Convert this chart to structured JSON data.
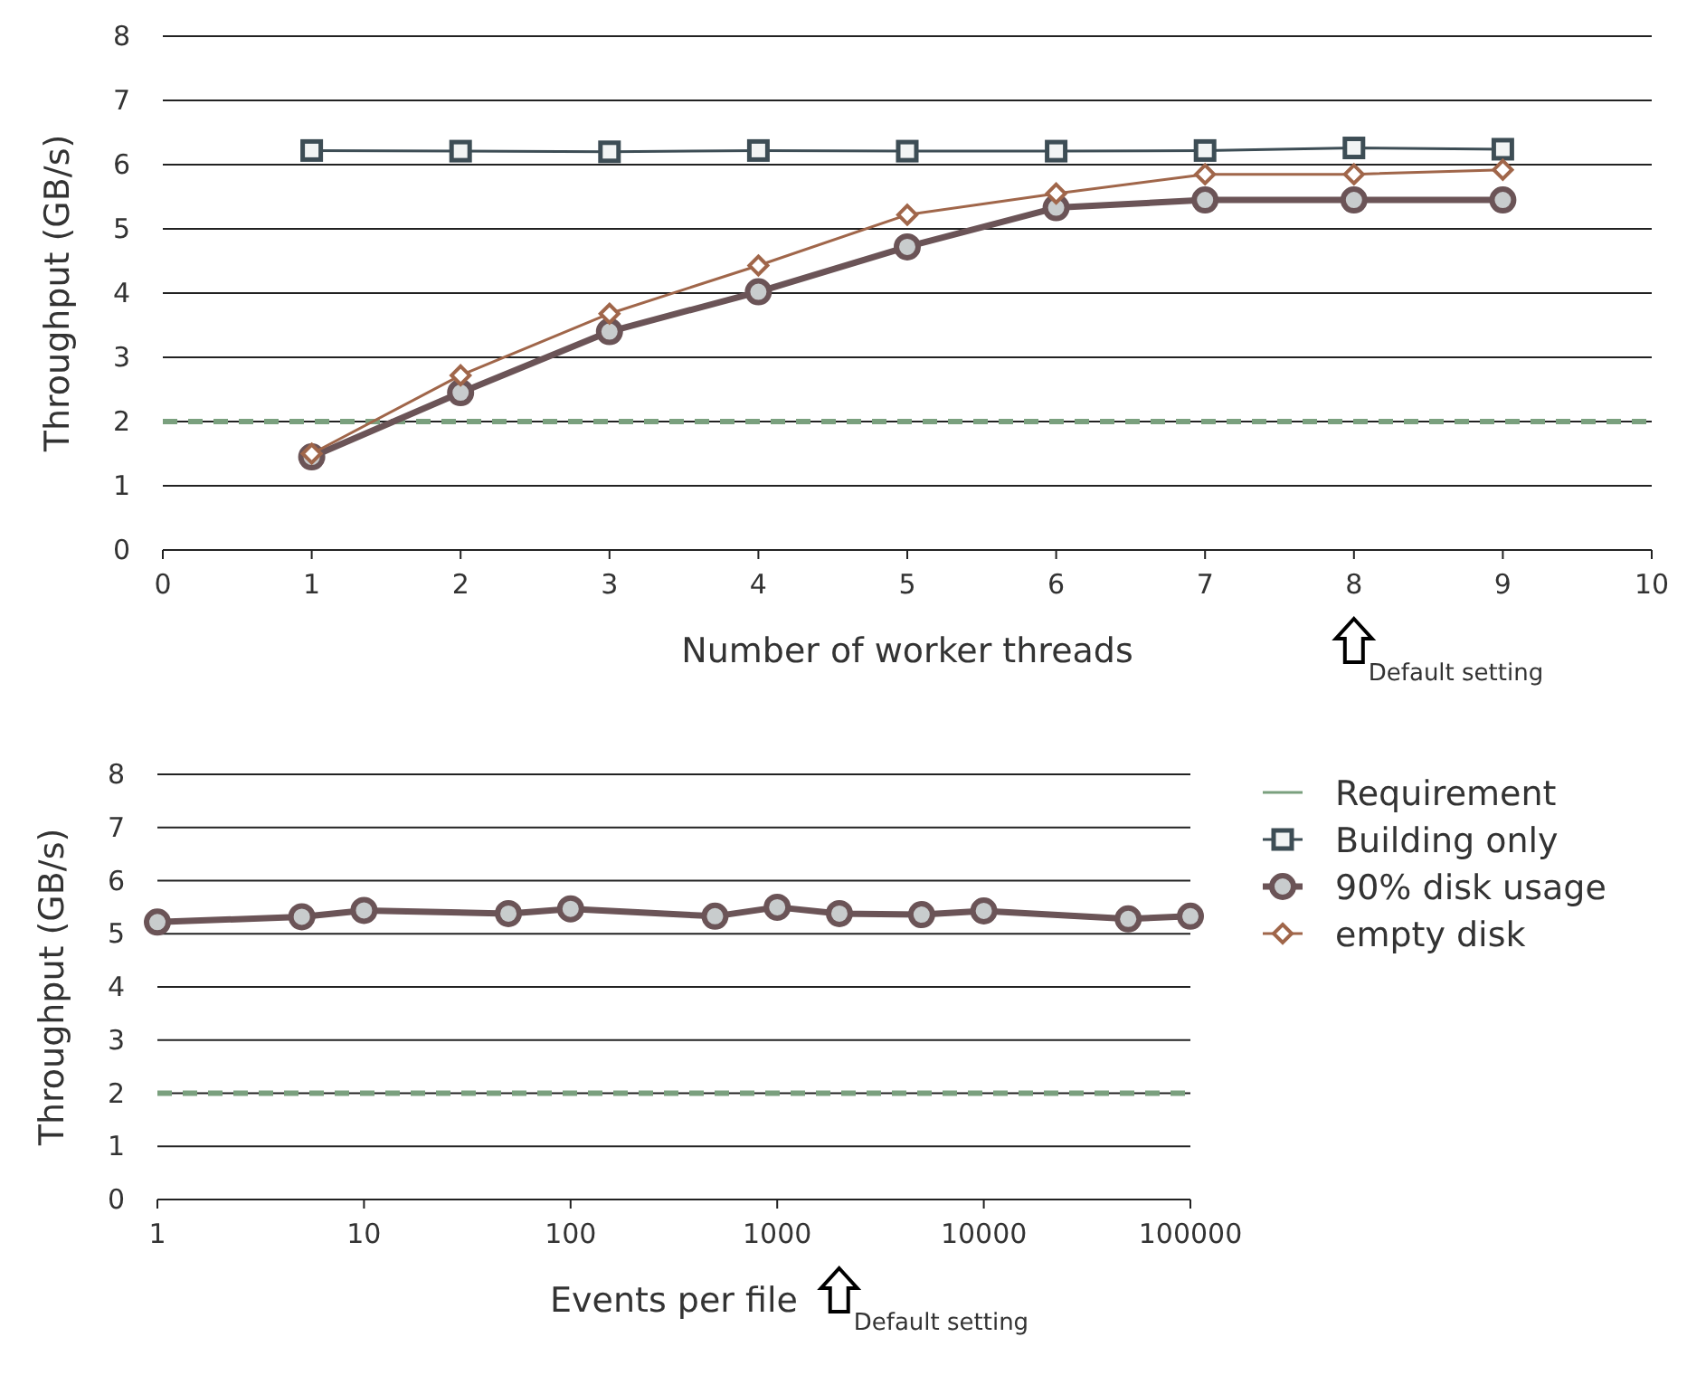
{
  "chart_data": [
    {
      "type": "line",
      "xlabel": "Number of worker threads",
      "ylabel": "Throughput (GB/s)",
      "xlim": [
        0,
        10
      ],
      "xticks": [
        0,
        1,
        2,
        3,
        4,
        5,
        6,
        7,
        8,
        9,
        10
      ],
      "ylim": [
        0,
        8
      ],
      "yticks": [
        0,
        1,
        2,
        3,
        4,
        5,
        6,
        7,
        8
      ],
      "grid": "y",
      "legend": "bottom right",
      "annotations": [
        "Default setting"
      ],
      "series": [
        {
          "name": "Requirement",
          "color": "#7aa07e",
          "x": [
            0,
            10
          ],
          "values": [
            2,
            2
          ],
          "line_style": "dashed",
          "marker": "none"
        },
        {
          "name": "Building only",
          "color": "#3d4d55",
          "x": [
            1,
            2,
            3,
            4,
            5,
            6,
            7,
            8,
            9
          ],
          "values": [
            6.22,
            6.21,
            6.2,
            6.22,
            6.21,
            6.21,
            6.22,
            6.26,
            6.24
          ],
          "marker": "square"
        },
        {
          "name": "90% disk usage",
          "color": "#6b5457",
          "x": [
            1,
            2,
            3,
            4,
            5,
            6,
            7,
            8,
            9
          ],
          "values": [
            1.45,
            2.45,
            3.4,
            4.02,
            4.72,
            5.33,
            5.45,
            5.45,
            5.45
          ],
          "marker": "circle"
        },
        {
          "name": "empty disk",
          "color": "#a0664a",
          "x": [
            1,
            2,
            3,
            4,
            5,
            6,
            7,
            8,
            9
          ],
          "values": [
            1.5,
            2.72,
            3.68,
            4.43,
            5.22,
            5.55,
            5.85,
            5.85,
            5.92
          ],
          "marker": "diamond"
        }
      ]
    },
    {
      "type": "line",
      "xlabel": "Events per file",
      "ylabel": "Throughput (GB/s)",
      "log": "x",
      "xlim": [
        1,
        100000
      ],
      "xticks": [
        1,
        10,
        100,
        1000,
        10000,
        100000
      ],
      "ylim": [
        0,
        8
      ],
      "yticks": [
        0,
        1,
        2,
        3,
        4,
        5,
        6,
        7,
        8
      ],
      "grid": "y",
      "annotations": [
        "Default setting"
      ],
      "series": [
        {
          "color": "#7aa07e",
          "x": [
            1,
            100000
          ],
          "values": [
            2,
            2
          ],
          "line_style": "dashed",
          "marker": "none"
        },
        {
          "color": "#6b5457",
          "x": [
            1,
            5,
            10,
            50,
            100,
            500,
            1000,
            2000,
            5000,
            10000,
            50000,
            100000
          ],
          "values": [
            5.22,
            5.32,
            5.44,
            5.38,
            5.47,
            5.33,
            5.5,
            5.38,
            5.36,
            5.43,
            5.28,
            5.33
          ],
          "marker": "circle"
        }
      ]
    }
  ]
}
